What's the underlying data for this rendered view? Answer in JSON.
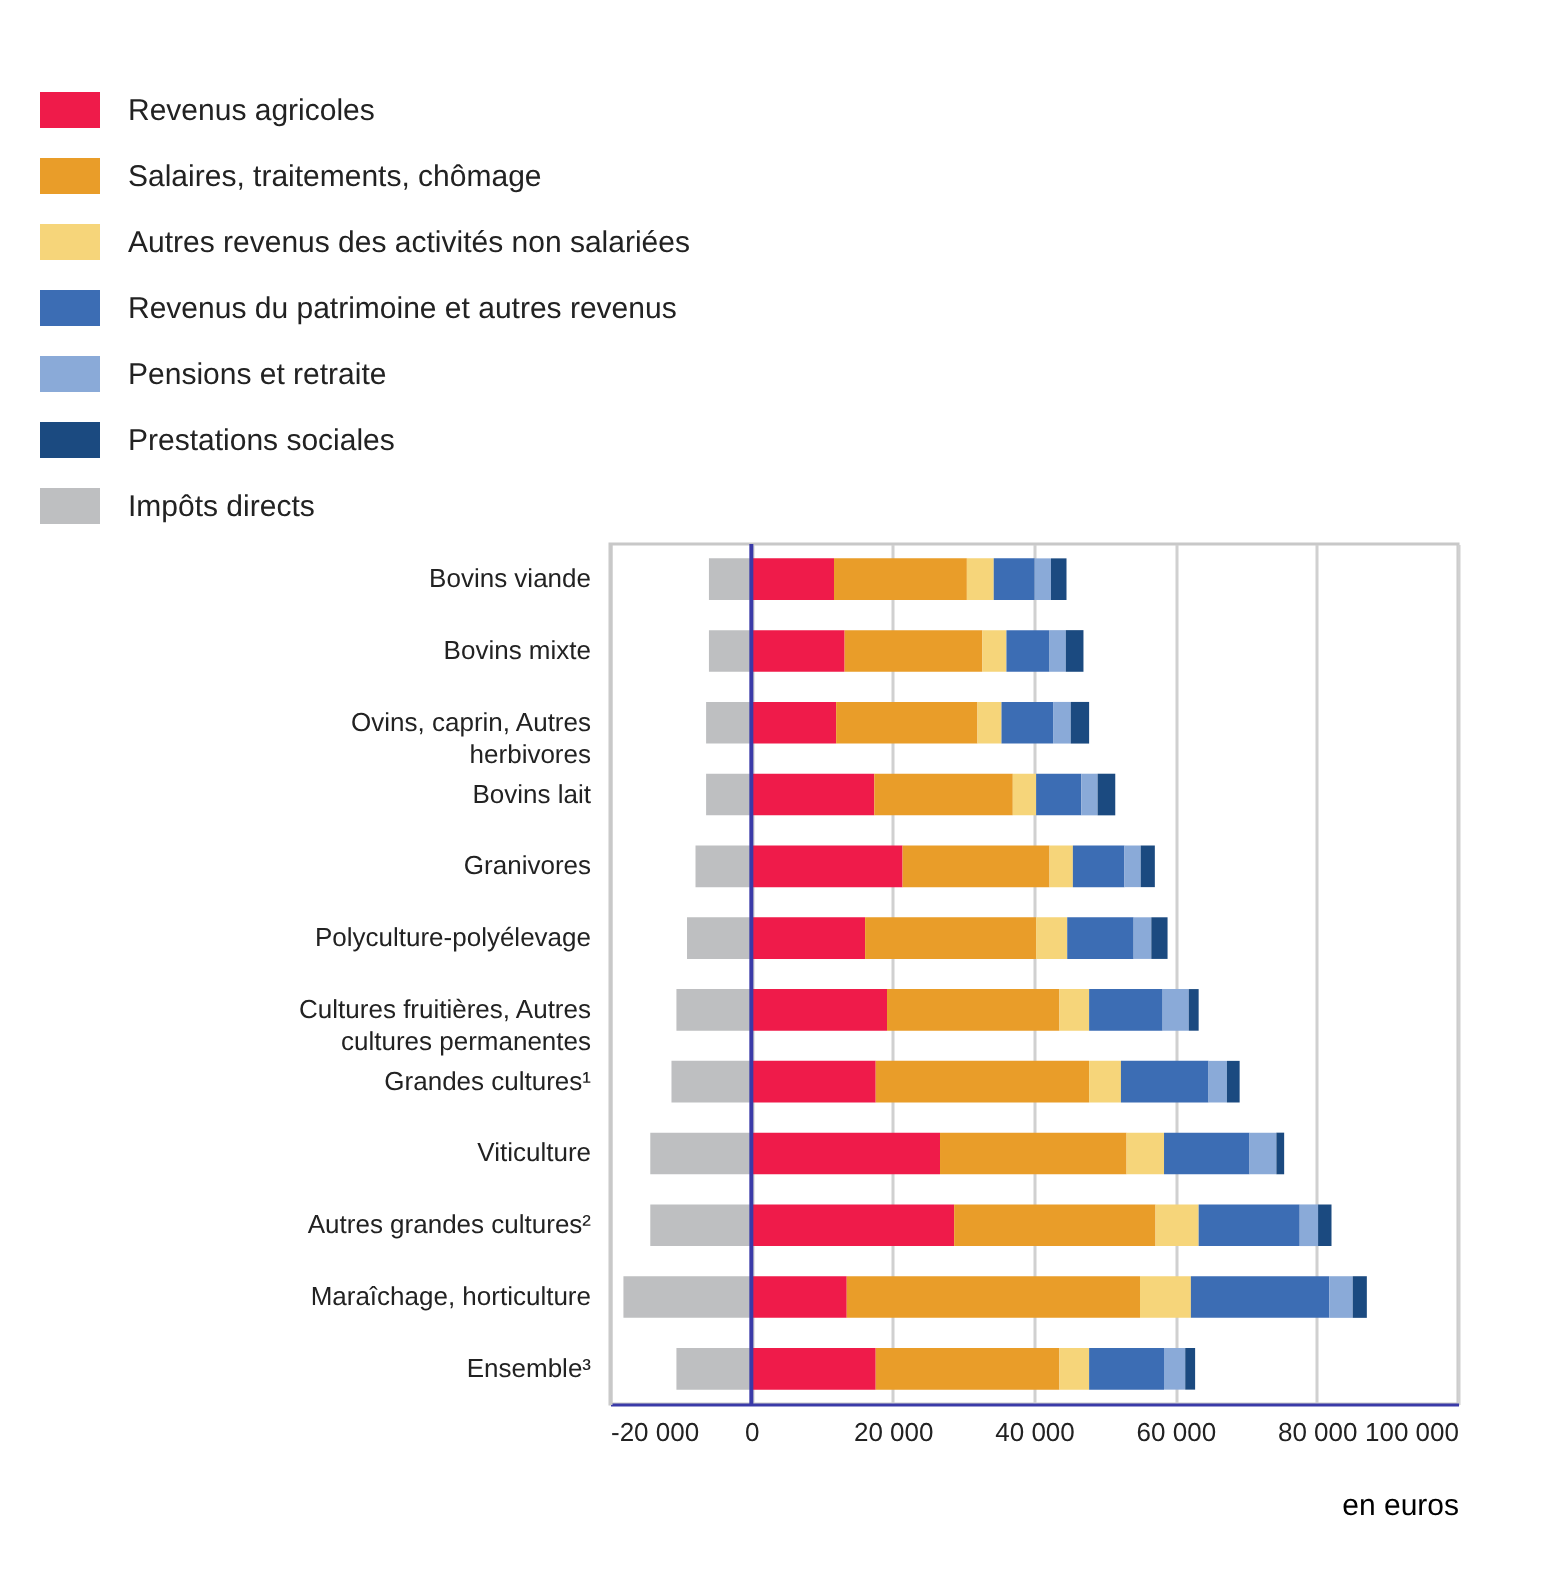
{
  "chart_data": {
    "type": "bar",
    "orientation": "horizontal",
    "stacked": true,
    "categories": [
      "Bovins viande",
      "Bovins mixte",
      "Ovins, caprin, Autres herbivores",
      "Bovins lait",
      "Granivores",
      "Polyculture-polyélevage",
      "Cultures fruitières, Autres cultures permanentes",
      "Grandes cultures¹",
      "Viticulture",
      "Autres grandes cultures²",
      "Maraîchage, horticulture",
      "Ensemble³"
    ],
    "series": [
      {
        "name": "Revenus agricoles",
        "color": "#ef1b4a",
        "values": [
          11700,
          13200,
          12000,
          17400,
          21400,
          16100,
          19200,
          17600,
          26700,
          28700,
          13500,
          17600
        ]
      },
      {
        "name": "Salaires, traitements, chômage",
        "color": "#e99d29",
        "values": [
          18800,
          19500,
          20000,
          19600,
          20800,
          24200,
          24400,
          30200,
          26400,
          28500,
          41500,
          26000
        ]
      },
      {
        "name": "Autres revenus des activités non salariées",
        "color": "#f6d57a",
        "values": [
          3800,
          3400,
          3400,
          3300,
          3300,
          4400,
          4200,
          4500,
          5300,
          6100,
          7200,
          4200
        ]
      },
      {
        "name": "Revenus du patrimoine et autres revenus",
        "color": "#3c6db4",
        "values": [
          5800,
          6100,
          7300,
          6400,
          7300,
          9400,
          10400,
          12400,
          12100,
          14300,
          19600,
          10600
        ]
      },
      {
        "name": "Pensions et retraite",
        "color": "#8aaad8",
        "values": [
          2300,
          2300,
          2500,
          2300,
          2300,
          2500,
          3700,
          2600,
          3800,
          2600,
          3300,
          3000
        ]
      },
      {
        "name": "Prestations sociales",
        "color": "#1b4a80",
        "values": [
          2200,
          2500,
          2600,
          2500,
          2000,
          2300,
          1400,
          1800,
          1100,
          1900,
          2000,
          1400
        ]
      },
      {
        "name": "Impôts directs",
        "color": "#bebfc1",
        "values": [
          -6000,
          -6000,
          -6400,
          -6400,
          -7900,
          -9100,
          -10600,
          -11300,
          -14300,
          -14300,
          -18100,
          -10600
        ]
      }
    ],
    "xlim": [
      -20000,
      100000
    ],
    "xticks": [
      {
        "value": -20000,
        "label": "-20 000"
      },
      0,
      {
        "value": 20000,
        "label": "20 000"
      },
      {
        "value": 40000,
        "label": "40 000"
      },
      {
        "value": 60000,
        "label": "60 000"
      },
      {
        "value": 80000,
        "label": "80 000"
      },
      {
        "value": 100000,
        "label": "100 000"
      }
    ],
    "xlabel": "en euros",
    "grid": "x",
    "legend": "top left",
    "ref_lines": [
      {
        "axis": "x",
        "value": 0,
        "color": "#3a3aa8"
      }
    ]
  }
}
